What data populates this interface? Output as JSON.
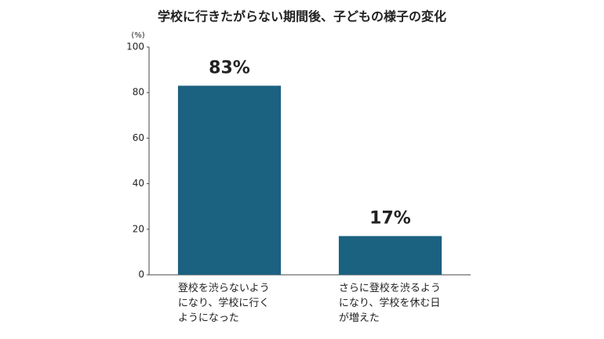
{
  "chart_data": {
    "type": "bar",
    "title": "学校に行きたがらない期間後、子どもの様子の変化",
    "y_unit": "(%)",
    "categories": [
      "登校を渋らないよう\nになり、学校に行く\nようになった",
      "さらに登校を渋るよう\nになり、学校を休む日\nが増えた"
    ],
    "values": [
      83,
      17
    ],
    "value_labels": [
      "83%",
      "17%"
    ],
    "color": "#1b6180",
    "ylim": [
      0,
      100
    ],
    "yticks": [
      0,
      20,
      40,
      60,
      80,
      100
    ]
  }
}
